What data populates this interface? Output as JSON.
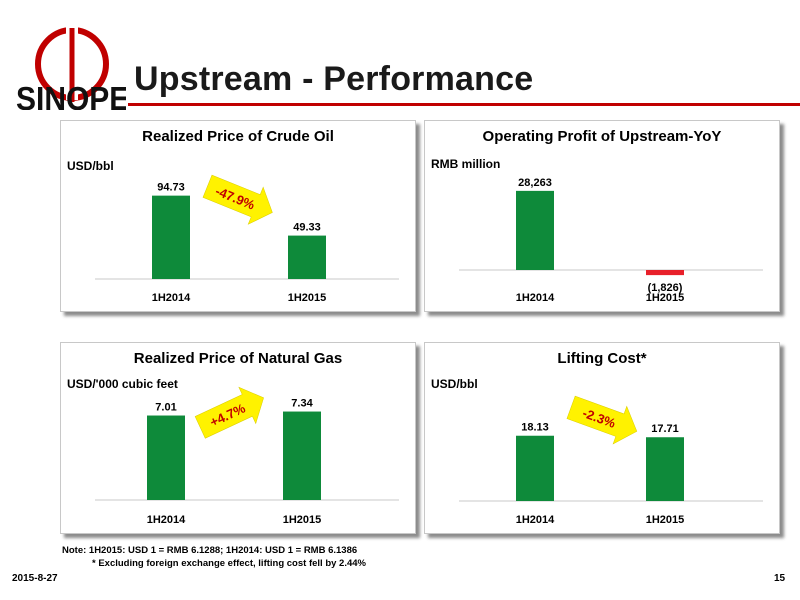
{
  "header": {
    "title": "Upstream - Performance"
  },
  "colors": {
    "accent": "#c00000",
    "bar_green": "#0e8a3a",
    "bar_red": "#e8202a",
    "arrow_yellow": "#fff200"
  },
  "chart_data": [
    {
      "type": "bar",
      "title": "Realized Price of Crude Oil",
      "ylabel": "USD/bbl",
      "categories": [
        "1H2014",
        "1H2015"
      ],
      "values": [
        94.73,
        49.33
      ],
      "value_labels": [
        "94.73",
        "49.33"
      ],
      "ylim": [
        0,
        100
      ],
      "change_label": "-47.9%"
    },
    {
      "type": "bar",
      "title": "Operating Profit of Upstream-YoY",
      "ylabel": "RMB million",
      "categories": [
        "1H2014",
        "1H2015"
      ],
      "values": [
        28263,
        -1826
      ],
      "value_labels": [
        "28,263",
        "(1,826)"
      ],
      "ylim": [
        -1826,
        30000
      ]
    },
    {
      "type": "bar",
      "title": "Realized Price of Natural Gas",
      "ylabel": "USD/'000 cubic feet",
      "categories": [
        "1H2014",
        "1H2015"
      ],
      "values": [
        7.01,
        7.34
      ],
      "value_labels": [
        "7.01",
        "7.34"
      ],
      "ylim": [
        0,
        7.8
      ],
      "change_label": "+4.7%"
    },
    {
      "type": "bar",
      "title": "Lifting Cost*",
      "ylabel": "USD/bbl",
      "categories": [
        "1H2014",
        "1H2015"
      ],
      "values": [
        18.13,
        17.71
      ],
      "value_labels": [
        "18.13",
        "17.71"
      ],
      "ylim": [
        0,
        25
      ],
      "change_label": "-2.3%"
    }
  ],
  "notes": {
    "line1": "Note: 1H2015: USD 1 = RMB 6.1288; 1H2014: USD 1 = RMB 6.1386",
    "line2": "* Excluding foreign exchange effect, lifting cost fell by 2.44%"
  },
  "footer": {
    "date": "2015-8-27",
    "page": "15"
  }
}
